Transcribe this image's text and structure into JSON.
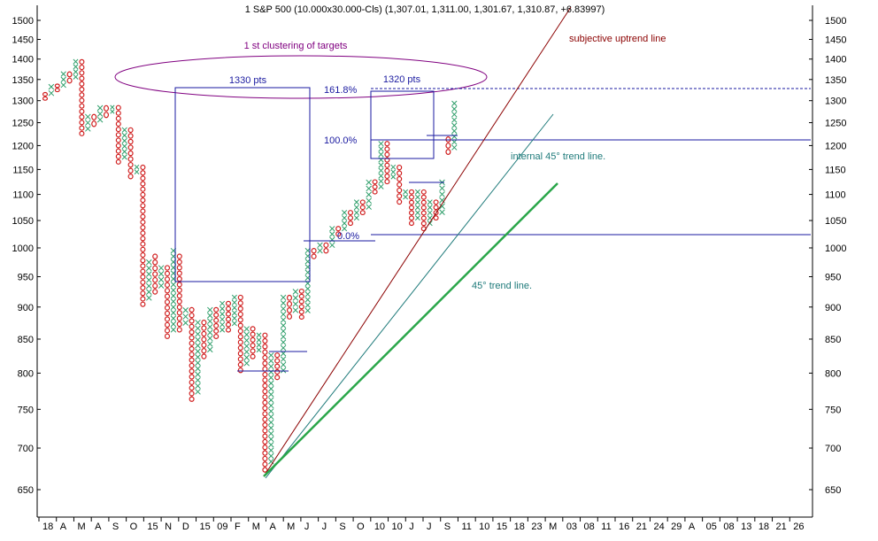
{
  "chart_data": {
    "type": "point-and-figure",
    "title": "1 S&P 500 (10.000x30.000-Cls) (1,307.01, 1,311.00, 1,301.67, 1,310.87, +6.83997)",
    "y_scale": "log",
    "ylim": [
      620,
      1540
    ],
    "y_ticks": [
      650,
      700,
      750,
      800,
      850,
      900,
      950,
      1000,
      1050,
      1100,
      1150,
      1200,
      1250,
      1300,
      1350,
      1400,
      1450,
      1500
    ],
    "x_tick_labels": [
      "18",
      "A",
      "M",
      "A",
      "S",
      "O",
      "15",
      "N",
      "D",
      "15",
      "09",
      "F",
      "M",
      "A",
      "M",
      "J",
      "J",
      "S",
      "O",
      "10",
      "10",
      "J",
      "J",
      "S",
      "11",
      "10",
      "15",
      "18",
      "23",
      "M",
      "03",
      "08",
      "11",
      "16",
      "21",
      "24",
      "29",
      "A",
      "05",
      "08",
      "13",
      "18",
      "21",
      "26"
    ],
    "columns": [
      {
        "c": 0,
        "t": "O",
        "lo": 1300,
        "hi": 1320
      },
      {
        "c": 1,
        "t": "X",
        "lo": 1310,
        "hi": 1340
      },
      {
        "c": 2,
        "t": "O",
        "lo": 1320,
        "hi": 1340
      },
      {
        "c": 3,
        "t": "X",
        "lo": 1330,
        "hi": 1370
      },
      {
        "c": 4,
        "t": "O",
        "lo": 1340,
        "hi": 1370
      },
      {
        "c": 5,
        "t": "X",
        "lo": 1350,
        "hi": 1400
      },
      {
        "c": 6,
        "t": "O",
        "lo": 1220,
        "hi": 1400
      },
      {
        "c": 7,
        "t": "X",
        "lo": 1230,
        "hi": 1270
      },
      {
        "c": 8,
        "t": "O",
        "lo": 1240,
        "hi": 1270
      },
      {
        "c": 9,
        "t": "X",
        "lo": 1250,
        "hi": 1290
      },
      {
        "c": 10,
        "t": "O",
        "lo": 1260,
        "hi": 1290
      },
      {
        "c": 11,
        "t": "X",
        "lo": 1270,
        "hi": 1290
      },
      {
        "c": 12,
        "t": "O",
        "lo": 1160,
        "hi": 1290
      },
      {
        "c": 13,
        "t": "X",
        "lo": 1170,
        "hi": 1240
      },
      {
        "c": 14,
        "t": "O",
        "lo": 1130,
        "hi": 1240
      },
      {
        "c": 15,
        "t": "X",
        "lo": 1140,
        "hi": 1160
      },
      {
        "c": 16,
        "t": "O",
        "lo": 900,
        "hi": 1160
      },
      {
        "c": 17,
        "t": "X",
        "lo": 910,
        "hi": 980
      },
      {
        "c": 18,
        "t": "O",
        "lo": 920,
        "hi": 990
      },
      {
        "c": 19,
        "t": "X",
        "lo": 930,
        "hi": 970
      },
      {
        "c": 20,
        "t": "O",
        "lo": 850,
        "hi": 970
      },
      {
        "c": 21,
        "t": "X",
        "lo": 860,
        "hi": 1000
      },
      {
        "c": 22,
        "t": "O",
        "lo": 860,
        "hi": 990
      },
      {
        "c": 23,
        "t": "X",
        "lo": 870,
        "hi": 900
      },
      {
        "c": 24,
        "t": "O",
        "lo": 760,
        "hi": 900
      },
      {
        "c": 25,
        "t": "X",
        "lo": 770,
        "hi": 880
      },
      {
        "c": 26,
        "t": "O",
        "lo": 820,
        "hi": 880
      },
      {
        "c": 27,
        "t": "X",
        "lo": 830,
        "hi": 900
      },
      {
        "c": 28,
        "t": "O",
        "lo": 850,
        "hi": 900
      },
      {
        "c": 29,
        "t": "X",
        "lo": 860,
        "hi": 910
      },
      {
        "c": 30,
        "t": "O",
        "lo": 860,
        "hi": 910
      },
      {
        "c": 31,
        "t": "X",
        "lo": 870,
        "hi": 920
      },
      {
        "c": 32,
        "t": "O",
        "lo": 800,
        "hi": 920
      },
      {
        "c": 33,
        "t": "X",
        "lo": 810,
        "hi": 870
      },
      {
        "c": 34,
        "t": "O",
        "lo": 820,
        "hi": 870
      },
      {
        "c": 35,
        "t": "X",
        "lo": 830,
        "hi": 860
      },
      {
        "c": 36,
        "t": "O",
        "lo": 670,
        "hi": 860
      },
      {
        "c": 37,
        "t": "X",
        "lo": 680,
        "hi": 830
      },
      {
        "c": 38,
        "t": "O",
        "lo": 790,
        "hi": 830
      },
      {
        "c": 39,
        "t": "X",
        "lo": 800,
        "hi": 920
      },
      {
        "c": 40,
        "t": "O",
        "lo": 880,
        "hi": 920
      },
      {
        "c": 41,
        "t": "X",
        "lo": 890,
        "hi": 930
      },
      {
        "c": 42,
        "t": "O",
        "lo": 880,
        "hi": 930
      },
      {
        "c": 43,
        "t": "X",
        "lo": 890,
        "hi": 1000
      },
      {
        "c": 44,
        "t": "O",
        "lo": 980,
        "hi": 1000
      },
      {
        "c": 45,
        "t": "X",
        "lo": 990,
        "hi": 1010
      },
      {
        "c": 46,
        "t": "O",
        "lo": 990,
        "hi": 1010
      },
      {
        "c": 47,
        "t": "X",
        "lo": 1000,
        "hi": 1040
      },
      {
        "c": 48,
        "t": "O",
        "lo": 1020,
        "hi": 1040
      },
      {
        "c": 49,
        "t": "X",
        "lo": 1030,
        "hi": 1070
      },
      {
        "c": 50,
        "t": "O",
        "lo": 1040,
        "hi": 1070
      },
      {
        "c": 51,
        "t": "X",
        "lo": 1050,
        "hi": 1090
      },
      {
        "c": 52,
        "t": "O",
        "lo": 1060,
        "hi": 1090
      },
      {
        "c": 53,
        "t": "X",
        "lo": 1070,
        "hi": 1130
      },
      {
        "c": 54,
        "t": "O",
        "lo": 1100,
        "hi": 1130
      },
      {
        "c": 55,
        "t": "X",
        "lo": 1110,
        "hi": 1210
      },
      {
        "c": 56,
        "t": "O",
        "lo": 1120,
        "hi": 1210
      },
      {
        "c": 57,
        "t": "X",
        "lo": 1130,
        "hi": 1160
      },
      {
        "c": 58,
        "t": "O",
        "lo": 1080,
        "hi": 1160
      },
      {
        "c": 59,
        "t": "X",
        "lo": 1090,
        "hi": 1110
      },
      {
        "c": 60,
        "t": "O",
        "lo": 1040,
        "hi": 1110
      },
      {
        "c": 61,
        "t": "X",
        "lo": 1050,
        "hi": 1110
      },
      {
        "c": 62,
        "t": "O",
        "lo": 1030,
        "hi": 1110
      },
      {
        "c": 63,
        "t": "X",
        "lo": 1040,
        "hi": 1090
      },
      {
        "c": 64,
        "t": "O",
        "lo": 1050,
        "hi": 1090
      },
      {
        "c": 65,
        "t": "X",
        "lo": 1060,
        "hi": 1130
      },
      {
        "c": 66,
        "t": "O",
        "lo": 1180,
        "hi": 1220
      },
      {
        "c": 67,
        "t": "X",
        "lo": 1190,
        "hi": 1300
      }
    ]
  },
  "annotations": {
    "cluster_label": "1 st clustering of targets",
    "box1_label": "1330 pts",
    "box2_label": "1320 pts",
    "fib_1618": "161.8%",
    "fib_100": "100.0%",
    "fib_0": "0.0%",
    "uptrend_label": "subjective uptrend line",
    "internal_label": "internal 45° trend line.",
    "trend45_label": "45° trend line."
  },
  "colors": {
    "x_mark": "#2e9e6a",
    "o_mark": "#d02020",
    "target_box": "#1a1aa0",
    "ellipse": "#800080",
    "uptrend": "#8b0000",
    "internal_trend": "#1e7a7a",
    "trend45": "#2aa64a",
    "label_purple": "#800080",
    "label_blue": "#1a1aa0",
    "label_teal": "#1e7a7a",
    "label_darkred": "#8b0000"
  }
}
